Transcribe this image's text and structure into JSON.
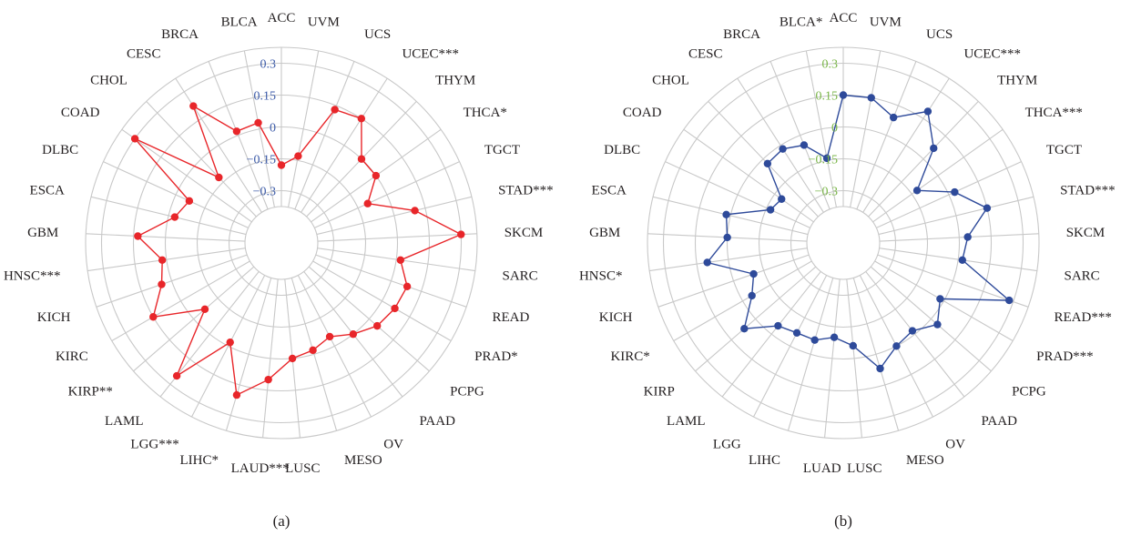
{
  "chart_data": [
    {
      "type": "radar",
      "panel_label": "(a)",
      "categories": [
        "ACC",
        "UVM",
        "UCS",
        "UCEC***",
        "THYM",
        "THCA*",
        "TGCT",
        "STAD***",
        "SKCM",
        "SARC",
        "READ",
        "PRAD*",
        "PCPG",
        "PAAD",
        "OV",
        "MESO",
        "LUSC",
        "LAUD***",
        "LIHC*",
        "LGG***",
        "LAML",
        "KIRP**",
        "KIRC",
        "KICH",
        "HNSC***",
        "GBM",
        "ESCA",
        "DLBC",
        "COAD",
        "CHOL",
        "CESC",
        "BRCA",
        "BLCA"
      ],
      "values": [
        -0.18,
        -0.13,
        0.13,
        0.15,
        0.0,
        0.0,
        -0.1,
        0.1,
        0.3,
        0.02,
        0.08,
        0.07,
        0.05,
        0.0,
        -0.05,
        -0.02,
        0.0,
        0.1,
        0.2,
        -0.02,
        0.25,
        -0.07,
        0.15,
        0.05,
        0.02,
        0.13,
        -0.03,
        -0.07,
        0.3,
        -0.12,
        0.22,
        0.02,
        0.03
      ],
      "color": "#e8262a",
      "tick_color": "#3b5aa8",
      "rticks": [
        "0.3",
        "0.15",
        "0",
        "−0.15",
        "−0.3"
      ],
      "ylim": [
        -0.3,
        0.3
      ]
    },
    {
      "type": "radar",
      "panel_label": "(b)",
      "categories": [
        "ACC",
        "UVM",
        "UCS",
        "UCEC***",
        "THYM",
        "THCA***",
        "TGCT",
        "STAD***",
        "SKCM",
        "SARC",
        "READ***",
        "PRAD***",
        "PCPG",
        "PAAD",
        "OV",
        "MESO",
        "LUSC",
        "LUAD",
        "LIHC",
        "LGG",
        "LAML",
        "KIRP",
        "KIRC*",
        "KICH",
        "HNSC*",
        "GBM",
        "ESCA",
        "DLBC",
        "COAD",
        "CHOL",
        "CESC",
        "BRCA",
        "BLCA*"
      ],
      "values": [
        0.15,
        0.15,
        0.09,
        0.19,
        0.07,
        -0.12,
        0.03,
        0.15,
        0.04,
        0.02,
        0.28,
        -0.02,
        0.04,
        -0.02,
        0.0,
        0.07,
        -0.06,
        -0.1,
        -0.07,
        -0.07,
        -0.05,
        0.07,
        -0.05,
        -0.1,
        0.1,
        0.0,
        0.02,
        -0.17,
        -0.19,
        -0.03,
        -0.02,
        -0.05,
        -0.14
      ],
      "color": "#2e4a9a",
      "tick_color": "#7ab648",
      "rticks": [
        "0.3",
        "0.15",
        "0",
        "−0.15",
        "−0.3"
      ],
      "ylim": [
        -0.3,
        0.3
      ]
    }
  ]
}
